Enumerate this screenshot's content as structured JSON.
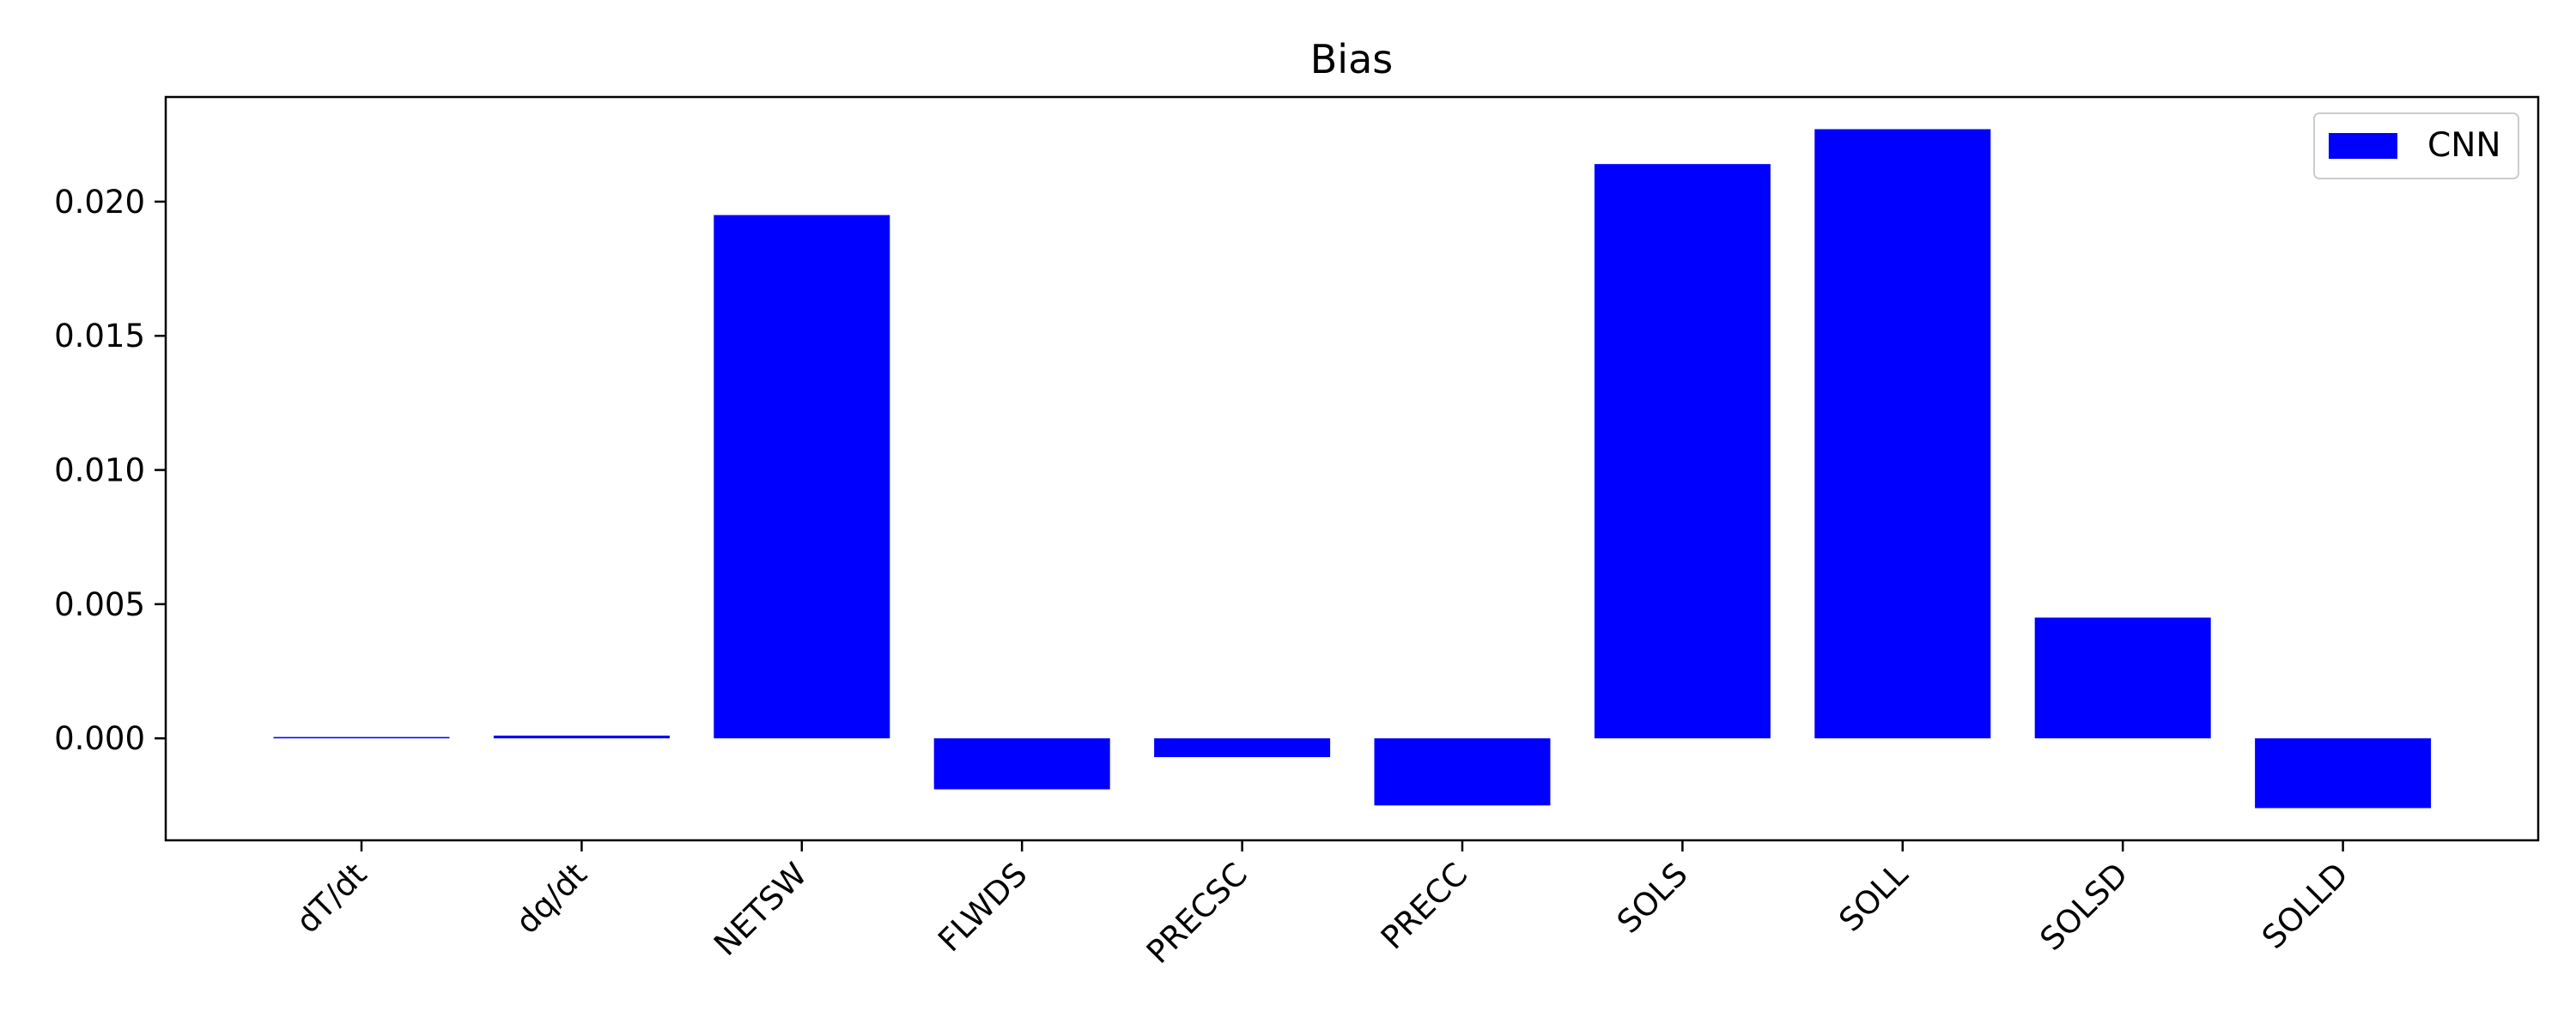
{
  "chart_data": {
    "type": "bar",
    "title": "Bias",
    "xlabel": "",
    "ylabel": "",
    "categories": [
      "dT/dt",
      "dq/dt",
      "NETSW",
      "FLWDS",
      "PRECSC",
      "PRECC",
      "SOLS",
      "SOLL",
      "SOLSD",
      "SOLLD"
    ],
    "series": [
      {
        "name": "CNN",
        "color": "#0000ff",
        "values": [
          5e-05,
          0.0001,
          0.0195,
          -0.0019,
          -0.0007,
          -0.0025,
          0.0214,
          0.0227,
          0.0045,
          -0.0026
        ]
      }
    ],
    "ylim": [
      -0.0038,
      0.0239
    ],
    "yticks": [
      0.0,
      0.005,
      0.01,
      0.015,
      0.02
    ],
    "ytick_labels": [
      "0.000",
      "0.005",
      "0.010",
      "0.015",
      "0.020"
    ],
    "grid": false,
    "legend": "top-right"
  }
}
